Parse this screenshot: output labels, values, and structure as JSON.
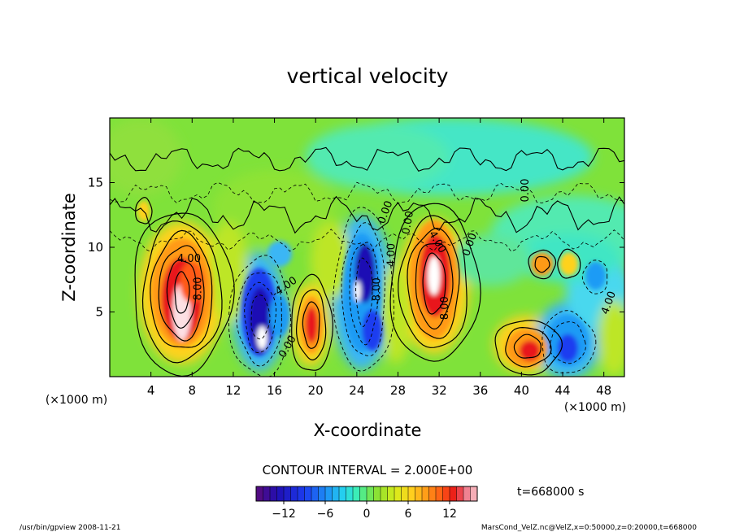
{
  "chart_data": {
    "type": "heatmap",
    "title": "vertical velocity",
    "xlabel": "X-coordinate",
    "ylabel": "Z-coordinate",
    "x_unit_left": "(×1000 m)",
    "x_unit_right": "(×1000 m)",
    "xlim": [
      0,
      50
    ],
    "ylim": [
      0,
      20
    ],
    "x_ticks": [
      4,
      8,
      12,
      16,
      20,
      24,
      28,
      32,
      36,
      40,
      44,
      48
    ],
    "y_ticks": [
      5,
      10,
      15
    ],
    "contour_interval_text": "CONTOUR INTERVAL = 2.000E+00",
    "time_label": "t=668000 s",
    "colorbar": {
      "min": -16,
      "max": 16,
      "ticks": [
        -12,
        -6,
        0,
        6,
        12
      ]
    },
    "contour_labels": [
      {
        "text": "4.00",
        "x": 7.7,
        "y": 9.1,
        "rot": 0
      },
      {
        "text": "8.00",
        "x": 8.6,
        "y": 6.8,
        "rot": -90
      },
      {
        "text": "-4.00",
        "x": 17,
        "y": 6.9,
        "rot": -35
      },
      {
        "text": "0.00",
        "x": 17.3,
        "y": 2.3,
        "rot": -60
      },
      {
        "text": "-8.00",
        "x": 26,
        "y": 6.6,
        "rot": -90
      },
      {
        "text": "4.00",
        "x": 27.4,
        "y": 9.4,
        "rot": -90
      },
      {
        "text": "0.00",
        "x": 26.8,
        "y": 12.7,
        "rot": -70
      },
      {
        "text": "0.00",
        "x": 29,
        "y": 11.9,
        "rot": -80
      },
      {
        "text": "0.00",
        "x": 35,
        "y": 10.2,
        "rot": -70
      },
      {
        "text": "4.00",
        "x": 31.8,
        "y": 10.4,
        "rot": 60
      },
      {
        "text": "8.00",
        "x": 32.6,
        "y": 5.3,
        "rot": -90
      },
      {
        "text": "0.00",
        "x": 40.4,
        "y": 14.4,
        "rot": -90
      },
      {
        "text": "4.00",
        "x": 48.5,
        "y": 5.7,
        "rot": -70
      }
    ]
  },
  "footer": {
    "left": "/usr/bin/gpview   2008-11-21",
    "right": "MarsCond_VelZ.nc@VelZ,x=0:50000,z=0:20000,t=668000"
  }
}
